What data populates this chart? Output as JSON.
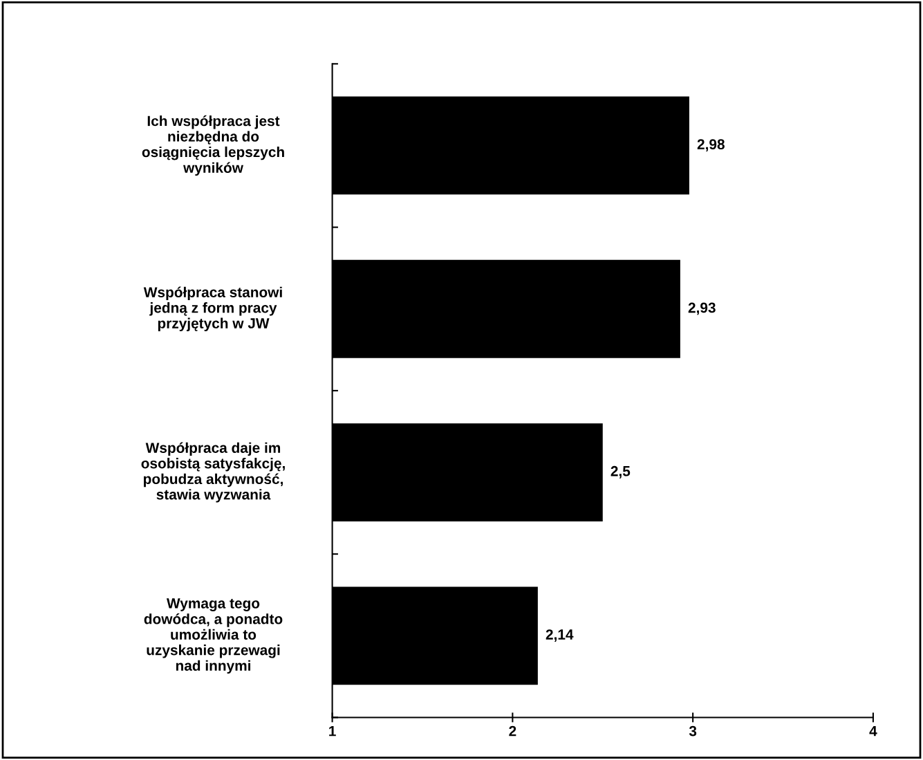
{
  "chart_data": {
    "type": "bar",
    "orientation": "horizontal",
    "categories": [
      "Ich współpraca jest\nniezbędna do\nosiągnięcia lepszych\nwyników",
      "Współpraca stanowi\njedną z form pracy\nprzyjętych w JW",
      "Współpraca daje im\nosobistą satysfakcję,\npobudza aktywność,\nstawia wyzwania",
      "Wymaga tego\ndowódca, a ponadto\numożliwia to\nuzyskanie przewagi\nnad innymi"
    ],
    "values": [
      2.98,
      2.93,
      2.5,
      2.14
    ],
    "value_labels": [
      "2,98",
      "2,93",
      "2,5",
      "2,14"
    ],
    "color": "#000000",
    "xlim": [
      1,
      4
    ],
    "xticks": [
      1,
      2,
      3,
      4
    ],
    "grid": false,
    "legend": false
  }
}
